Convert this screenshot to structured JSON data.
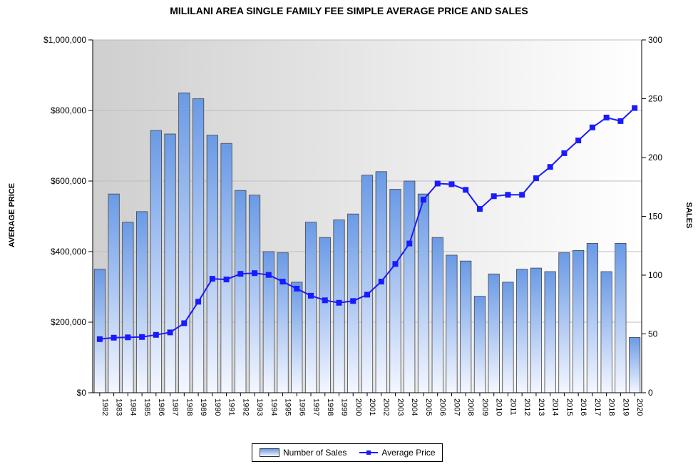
{
  "chart_data": {
    "type": "bar+line",
    "title": "MILILANI AREA SINGLE FAMILY FEE SIMPLE AVERAGE PRICE AND SALES",
    "y_left_label": "AVERAGE PRICE",
    "y_right_label": "SALES",
    "y_left_range": [
      0,
      1000000
    ],
    "y_left_ticks": [
      "$0",
      "$200,000",
      "$400,000",
      "$600,000",
      "$800,000",
      "$1,000,000"
    ],
    "y_right_range": [
      0,
      300
    ],
    "y_right_ticks": [
      "0",
      "50",
      "100",
      "150",
      "200",
      "250",
      "300"
    ],
    "categories": [
      "1982",
      "1983",
      "1984",
      "1985",
      "1986",
      "1987",
      "1988",
      "1989",
      "1990",
      "1991",
      "1992",
      "1993",
      "1994",
      "1995",
      "1996",
      "1997",
      "1998",
      "1999",
      "2000",
      "2001",
      "2002",
      "2003",
      "2004",
      "2005",
      "2006",
      "2007",
      "2008",
      "2009",
      "2010",
      "2011",
      "2012",
      "2013",
      "2014",
      "2015",
      "2016",
      "2017",
      "2018",
      "2019",
      "2020"
    ],
    "series": [
      {
        "name": "Number of Sales",
        "kind": "bar",
        "axis": "right",
        "values": [
          105,
          169,
          145,
          154,
          223,
          220,
          255,
          250,
          219,
          212,
          172,
          168,
          120,
          119,
          94,
          145,
          132,
          147,
          152,
          185,
          188,
          173,
          180,
          169,
          132,
          117,
          112,
          82,
          101,
          94,
          105,
          106,
          103,
          119,
          121,
          127,
          103,
          127,
          47
        ]
      },
      {
        "name": "Average Price",
        "kind": "line",
        "axis": "left",
        "values": [
          152000,
          156000,
          157000,
          158000,
          164000,
          171000,
          197000,
          258000,
          323000,
          321000,
          337000,
          339000,
          334000,
          315000,
          295000,
          275000,
          262000,
          255000,
          260000,
          278000,
          315000,
          365000,
          423000,
          547000,
          593000,
          591000,
          575000,
          521000,
          557000,
          561000,
          561000,
          608000,
          640000,
          679000,
          715000,
          752000,
          780000,
          770000,
          807000
        ]
      }
    ],
    "legend_position": "bottom"
  },
  "colors": {
    "bar_top": "#6a9ae6",
    "bar_bottom": "#f4f7ff",
    "bar_stroke": "#444444",
    "line": "#1a1aff",
    "plot_bg_left": "#cfcfcf",
    "plot_bg_right": "#ffffff"
  }
}
